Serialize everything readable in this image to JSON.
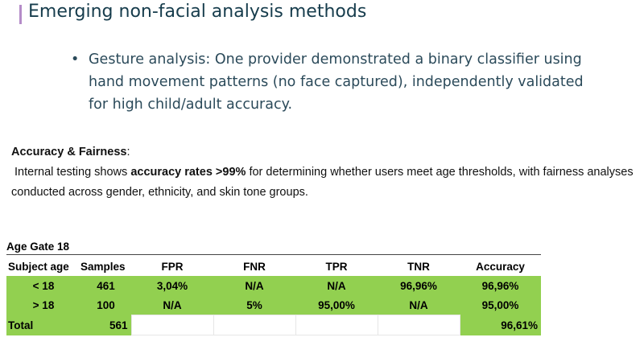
{
  "title": "Emerging non-facial analysis methods",
  "bullet": "Gesture analysis: One provider demonstrated a binary classifier using hand movement patterns (no face captured), independently validated for high child/adult accuracy.",
  "accuracy": {
    "heading": "Accuracy & Fairness",
    "colon": ":",
    "pre": " Internal testing shows ",
    "bold": "accuracy rates >99%",
    "post": " for determining whether users meet age thresholds, with fairness analyses conducted across gender, ethnicity, and skin tone groups."
  },
  "table": {
    "title": "Age Gate 18",
    "headers": [
      "Subject age",
      "Samples",
      "FPR",
      "FNR",
      "TPR",
      "TNR",
      "Accuracy"
    ],
    "rows": [
      [
        "< 18",
        "461",
        "3,04%",
        "N/A",
        "N/A",
        "96,96%",
        "96,96%"
      ],
      [
        "> 18",
        "100",
        "N/A",
        "5%",
        "95,00%",
        "N/A",
        "95,00%"
      ]
    ],
    "total": {
      "label": "Total",
      "samples": "561",
      "accuracy": "96,61%"
    },
    "colors": {
      "highlight": "#92d050"
    }
  }
}
